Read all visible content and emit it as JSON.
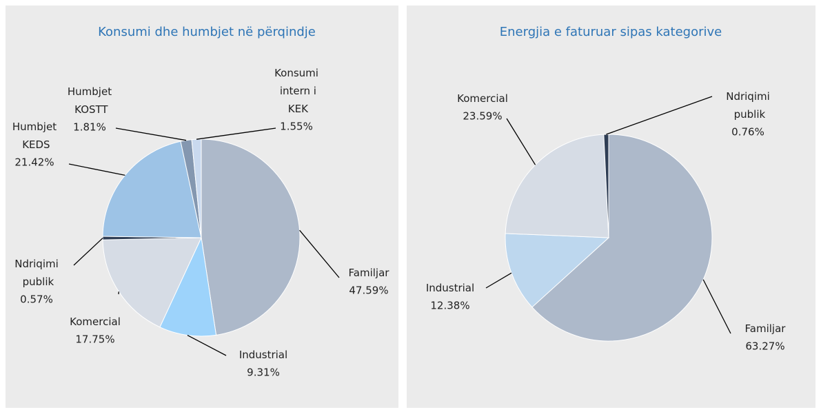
{
  "chart_data": [
    {
      "type": "pie",
      "title": "Konsumi dhe humbjet në përqindje",
      "categories": [
        "Familjar",
        "Industrial",
        "Komercial",
        "Ndriqimi publik",
        "Humbjet KEDS",
        "Humbjet KOSTT",
        "Konsumi intern i KEK"
      ],
      "values": [
        47.59,
        9.31,
        17.75,
        0.57,
        21.42,
        1.81,
        1.55
      ],
      "value_labels": [
        "47.59%",
        "9.31%",
        "17.75%",
        "0.57%",
        "21.42%",
        "1.81%",
        "1.55%"
      ],
      "colors": [
        "#adb9ca",
        "#9dd3fb",
        "#d6dce5",
        "#2f3e55",
        "#9dc3e6",
        "#8497b0",
        "#c9d9ef"
      ]
    },
    {
      "type": "pie",
      "title": "Energjia e faturuar sipas kategorive",
      "categories": [
        "Familjar",
        "Industrial",
        "Komercial",
        "Ndriqimi publik"
      ],
      "values": [
        63.27,
        12.38,
        23.59,
        0.76
      ],
      "value_labels": [
        "63.27%",
        "12.38%",
        "23.59%",
        "0.76%"
      ],
      "colors": [
        "#adb9ca",
        "#bdd7ee",
        "#d6dce5",
        "#2f3e55"
      ]
    }
  ]
}
